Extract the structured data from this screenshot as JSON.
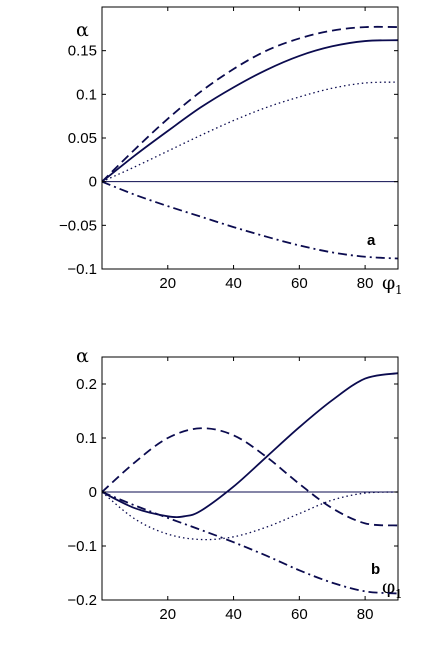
{
  "colors": {
    "curve": "#0b0b4f",
    "frame": "#000000",
    "zero_line": "#0b0b4f"
  },
  "chart_data": [
    {
      "type": "line",
      "panel_label": "a",
      "ylabel": "α",
      "xlabel_symbol": "φ",
      "xlabel_subscript": "1",
      "xlim": [
        0,
        90
      ],
      "ylim": [
        -0.1,
        0.2
      ],
      "x_ticks": [
        20,
        40,
        60,
        80
      ],
      "y_ticks": [
        -0.1,
        -0.05,
        0,
        0.05,
        0.1,
        0.15
      ],
      "y_tick_labels": [
        "−0.1",
        "−0.05",
        "0",
        "0.05",
        "0.1",
        "0.15"
      ],
      "grid": false,
      "zero_line": true,
      "series": [
        {
          "style": "dashed",
          "x": [
            0,
            10,
            20,
            30,
            40,
            50,
            60,
            70,
            80,
            90
          ],
          "values": [
            0,
            0.037,
            0.072,
            0.103,
            0.129,
            0.15,
            0.164,
            0.173,
            0.177,
            0.177
          ]
        },
        {
          "style": "solid",
          "x": [
            0,
            10,
            20,
            30,
            40,
            50,
            60,
            70,
            80,
            90
          ],
          "values": [
            0,
            0.03,
            0.058,
            0.085,
            0.108,
            0.128,
            0.144,
            0.155,
            0.161,
            0.162
          ]
        },
        {
          "style": "dotted",
          "x": [
            0,
            10,
            20,
            30,
            40,
            50,
            60,
            70,
            80,
            90
          ],
          "values": [
            0,
            0.017,
            0.035,
            0.053,
            0.07,
            0.085,
            0.097,
            0.107,
            0.113,
            0.114
          ]
        },
        {
          "style": "dashdot",
          "x": [
            0,
            10,
            20,
            30,
            40,
            50,
            60,
            70,
            80,
            90
          ],
          "values": [
            0,
            -0.015,
            -0.028,
            -0.04,
            -0.052,
            -0.063,
            -0.073,
            -0.081,
            -0.086,
            -0.088
          ]
        }
      ]
    },
    {
      "type": "line",
      "panel_label": "b",
      "ylabel": "α",
      "xlabel_symbol": "φ",
      "xlabel_subscript": "1",
      "xlim": [
        0,
        90
      ],
      "ylim": [
        -0.2,
        0.25
      ],
      "x_ticks": [
        20,
        40,
        60,
        80
      ],
      "y_ticks": [
        -0.2,
        -0.1,
        0,
        0.1,
        0.2
      ],
      "y_tick_labels": [
        "−0.2",
        "−0.1",
        "0",
        "0.1",
        "0.2"
      ],
      "grid": false,
      "zero_line": true,
      "series": [
        {
          "style": "solid",
          "x": [
            0,
            10,
            20,
            25,
            30,
            40,
            50,
            60,
            70,
            80,
            90
          ],
          "values": [
            0,
            -0.03,
            -0.045,
            -0.045,
            -0.035,
            0.01,
            0.065,
            0.12,
            0.17,
            0.21,
            0.22
          ]
        },
        {
          "style": "dashed",
          "x": [
            0,
            10,
            20,
            30,
            40,
            50,
            60,
            70,
            80,
            90
          ],
          "values": [
            0,
            0.055,
            0.1,
            0.118,
            0.105,
            0.065,
            0.015,
            -0.03,
            -0.058,
            -0.062
          ]
        },
        {
          "style": "dotted",
          "x": [
            0,
            10,
            20,
            30,
            40,
            50,
            60,
            70,
            80,
            90
          ],
          "values": [
            0,
            -0.05,
            -0.078,
            -0.088,
            -0.083,
            -0.065,
            -0.04,
            -0.015,
            -0.002,
            0.0
          ]
        },
        {
          "style": "dashdot",
          "x": [
            0,
            10,
            20,
            30,
            40,
            50,
            60,
            70,
            80,
            90
          ],
          "values": [
            0,
            -0.025,
            -0.048,
            -0.07,
            -0.093,
            -0.118,
            -0.145,
            -0.168,
            -0.184,
            -0.188
          ]
        }
      ]
    }
  ]
}
